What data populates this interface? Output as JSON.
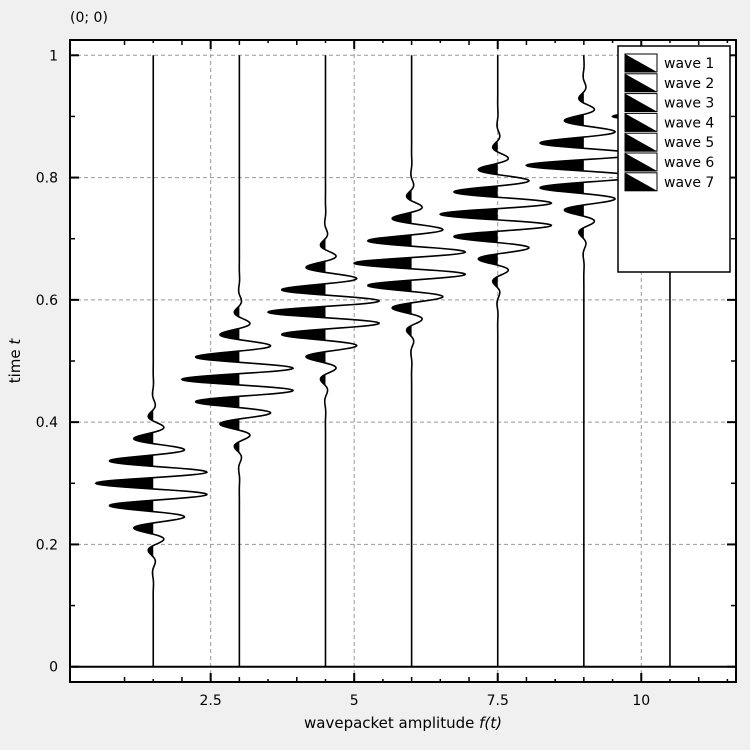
{
  "header": {
    "coordinate_readout": "(0; 0)"
  },
  "chart_data": {
    "type": "line",
    "title": "",
    "xlabel": "wavepacket amplitude",
    "xlabel_symbol": "f(t)",
    "ylabel": "time",
    "ylabel_symbol": "t",
    "xlim": [
      0.05,
      11.65
    ],
    "ylim": [
      -0.025,
      1.025
    ],
    "x_ticks": [
      2.5,
      5,
      7.5,
      10
    ],
    "x_tick_labels": [
      "2.5",
      "5",
      "7.5",
      "10"
    ],
    "y_ticks": [
      0,
      0.2,
      0.4,
      0.6,
      0.8,
      1
    ],
    "y_tick_labels": [
      "0",
      "0.2",
      "0.4",
      "0.6",
      "0.8",
      "1"
    ],
    "grid": true,
    "legend_position": "top-right",
    "fill_positive": true,
    "series": [
      {
        "name": "wave 1",
        "baseline": 1.5,
        "center": 0.3,
        "amplitude": 1.0
      },
      {
        "name": "wave 2",
        "baseline": 3.0,
        "center": 0.47,
        "amplitude": 1.0
      },
      {
        "name": "wave 3",
        "baseline": 4.5,
        "center": 0.58,
        "amplitude": 1.0
      },
      {
        "name": "wave 4",
        "baseline": 6.0,
        "center": 0.66,
        "amplitude": 1.0
      },
      {
        "name": "wave 5",
        "baseline": 7.5,
        "center": 0.74,
        "amplitude": 1.0
      },
      {
        "name": "wave 6",
        "baseline": 9.0,
        "center": 0.82,
        "amplitude": 1.0
      },
      {
        "name": "wave 7",
        "baseline": 10.5,
        "center": 0.9,
        "amplitude": 1.0
      }
    ]
  }
}
